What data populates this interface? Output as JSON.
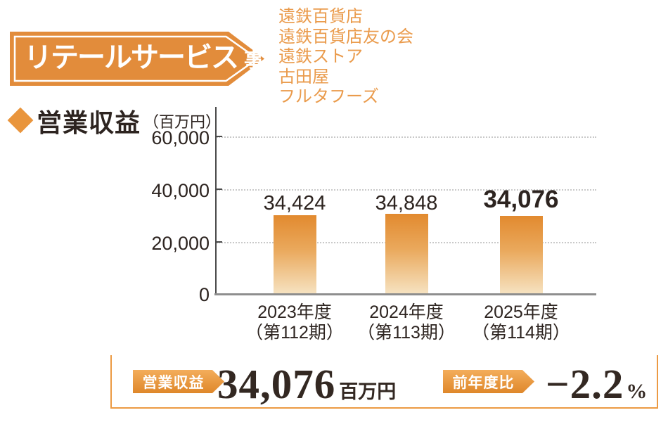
{
  "header": {
    "banner_title": "リテールサービス",
    "banner_suffix": "事業",
    "companies": [
      "遠鉄百貨店",
      "遠鉄百貨店友の会",
      "遠鉄ストア",
      "古田屋",
      "フルタフーズ"
    ]
  },
  "chart": {
    "title": "営業収益",
    "unit_label": "（百万円）",
    "yticks": [
      "60,000",
      "40,000",
      "20,000",
      "0"
    ],
    "value_labels": [
      "34,424",
      "34,848",
      "34,076"
    ],
    "categories": [
      {
        "year": "2023年度",
        "term": "（第112期）"
      },
      {
        "year": "2024年度",
        "term": "（第113期）"
      },
      {
        "year": "2025年度",
        "term": "（第114期）"
      }
    ]
  },
  "chart_data": {
    "type": "bar",
    "title": "営業収益",
    "ylabel": "百万円",
    "categories": [
      "2023年度（第112期）",
      "2024年度（第113期）",
      "2025年度（第114期）"
    ],
    "values": [
      34424,
      34848,
      34076
    ],
    "value_labels": [
      "34,424",
      "34,848",
      "34,076"
    ],
    "emphasized_index": 2,
    "ylim": [
      0,
      60000
    ],
    "yticks": [
      0,
      20000,
      40000,
      60000
    ],
    "grid": true,
    "legend": false,
    "bar_color_top": "#e28a2f",
    "bar_color_bottom": "#f6e2c0"
  },
  "summary": {
    "revenue_label": "営業収益",
    "revenue_value": "34,076",
    "revenue_unit": "百万円",
    "yoy_label": "前年度比",
    "yoy_value": "−2.2",
    "yoy_unit": "%"
  },
  "colors": {
    "accent_orange": "#e28c3b",
    "company_list_orange": "#ea9b4c",
    "text_dark": "#2d2420",
    "axis_gray": "#8e8e8e",
    "grid_gray": "#c9c9c9",
    "summary_border": "#ec9a43"
  }
}
